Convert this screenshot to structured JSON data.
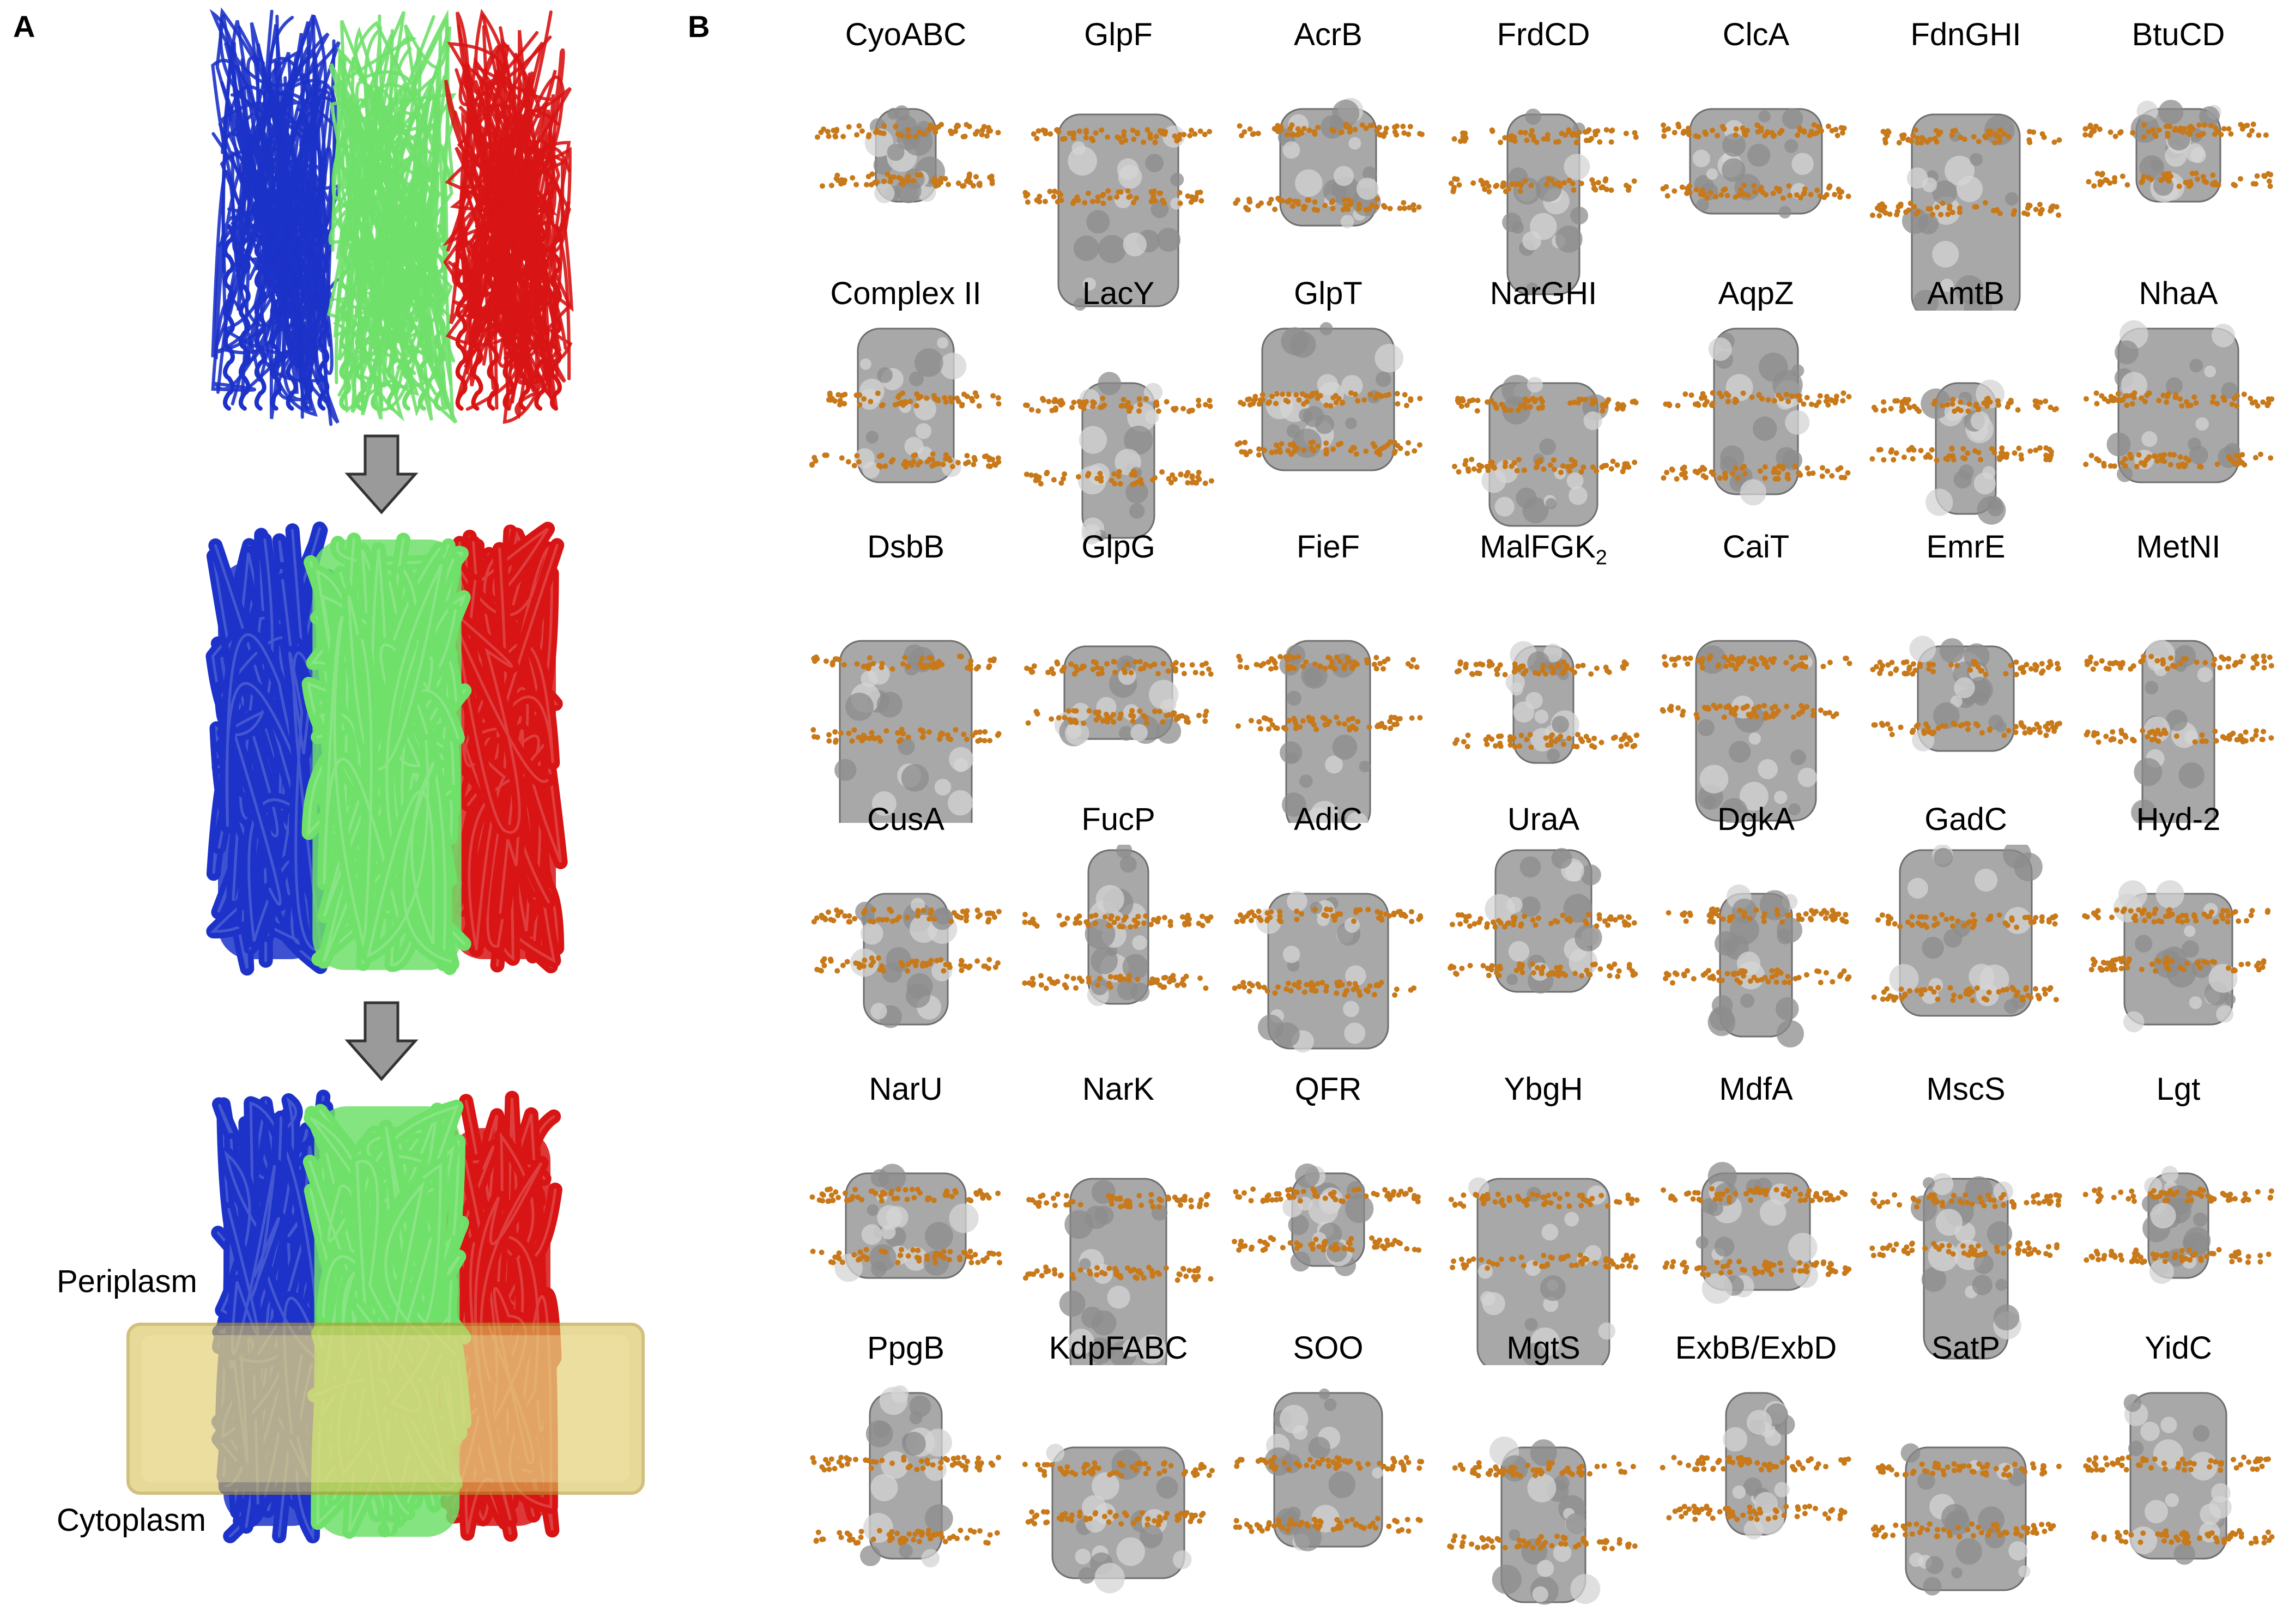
{
  "panel_a": {
    "letter": "A",
    "periplasm_label": "Periplasm",
    "cytoplasm_label": "Cytoplasm",
    "chain_colors": [
      "#1c32c8",
      "#6fe06a",
      "#d81414"
    ],
    "membrane_color": "#d9c35a",
    "arrow_color": "#9a9a9a"
  },
  "panel_b": {
    "letter": "B",
    "protein_color": "#a8a8a8",
    "lipid_color": "#c8791a",
    "rows": [
      [
        "CyoABC",
        "GlpF",
        "AcrB",
        "FrdCD",
        "ClcA",
        "FdnGHI",
        "BtuCD"
      ],
      [
        "Complex II",
        "LacY",
        "GlpT",
        "NarGHI",
        "AqpZ",
        "AmtB",
        "NhaA"
      ],
      [
        "DsbB",
        "GlpG",
        "FieF",
        "MalFGK",
        "CaiT",
        "EmrE",
        "MetNI"
      ],
      [
        "CusA",
        "FucP",
        "AdiC",
        "UraA",
        "DgkA",
        "GadC",
        "Hyd-2"
      ],
      [
        "NarU",
        "NarK",
        "QFR",
        "YbgH",
        "MdfA",
        "MscS",
        "Lgt"
      ],
      [
        "PpgB",
        "KdpFABC",
        "SOO",
        "MgtS",
        "ExbB/ExbD",
        "SatP",
        "YidC"
      ]
    ],
    "subscript": {
      "row": 2,
      "col": 3,
      "text": "2"
    }
  }
}
